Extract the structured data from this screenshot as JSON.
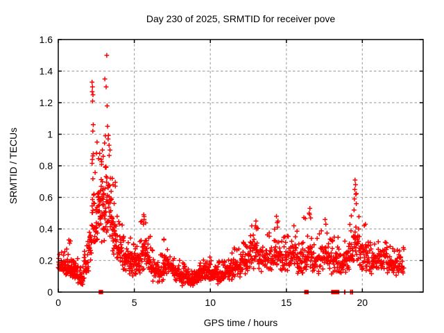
{
  "page": {
    "background_color": "#ffffff"
  },
  "chart_data": {
    "type": "scatter",
    "title": "Day 230 of 2025, SRMTID for receiver pove",
    "xlabel": "GPS time / hours",
    "ylabel": "SRMTID / TECUs",
    "xlim": [
      0,
      24
    ],
    "ylim": [
      0,
      1.6
    ],
    "xticks": [
      0,
      5,
      10,
      15,
      20
    ],
    "xtick_labels": [
      "0",
      "5",
      "10",
      "15",
      "20"
    ],
    "yticks": [
      0,
      0.2,
      0.4,
      0.6,
      0.8,
      1,
      1.2,
      1.4,
      1.6
    ],
    "ytick_labels": [
      "0",
      "0.2",
      "0.4",
      "0.6",
      "0.8",
      "1",
      "1.2",
      "1.4",
      "1.6"
    ],
    "grid": true,
    "grid_style": "dashed",
    "legend": "none",
    "marker": "plus",
    "marker_color": "#ff0000",
    "grid_color": "#a8a8a8",
    "axis_color": "#000000",
    "x_data_range": [
      0,
      22.75
    ],
    "notable_features": [
      "dense baseline cloud between 0.05 and 0.25 TECUs across the whole day",
      "major activity spike 2.2-3.5 h peaking at 1.50 TECUs near 3.2 h",
      "secondary peaks near 5.6 h (0.49), 13.0 h (0.45), 14.4 h (0.48), 16.5 h (0.53), 17.6 h (0.46), 19.5 h (0.71)",
      "zero-value flagged markers on the x-axis near 2.8, 16.3, 18.1, 18.3, 18.8, 19.2, 19.3 h"
    ],
    "series": [
      {
        "name": "SRMTID",
        "render": "density-bands",
        "bands_format": [
          "x_start_hours",
          "x_end_hours",
          "point_count",
          "y_bulk_min",
          "y_bulk_max",
          "y_tail_max"
        ],
        "bands": [
          [
            0.0,
            0.5,
            40,
            0.12,
            0.21,
            0.26
          ],
          [
            0.5,
            1.0,
            45,
            0.08,
            0.22,
            0.35
          ],
          [
            1.0,
            1.3,
            30,
            0.06,
            0.18,
            0.22
          ],
          [
            1.3,
            1.7,
            30,
            0.04,
            0.13,
            0.18
          ],
          [
            1.7,
            2.0,
            25,
            0.08,
            0.25,
            0.33
          ],
          [
            2.0,
            2.2,
            18,
            0.18,
            0.42,
            0.55
          ],
          [
            2.2,
            2.35,
            16,
            0.3,
            0.75,
            0.95
          ],
          [
            2.35,
            2.6,
            22,
            0.25,
            0.6,
            0.78
          ],
          [
            2.6,
            3.0,
            48,
            0.3,
            0.8,
            0.93
          ],
          [
            3.0,
            3.5,
            52,
            0.28,
            0.85,
            1.0
          ],
          [
            3.5,
            3.8,
            30,
            0.2,
            0.55,
            0.7
          ],
          [
            3.8,
            4.2,
            30,
            0.15,
            0.4,
            0.48
          ],
          [
            4.2,
            4.6,
            30,
            0.12,
            0.3,
            0.36
          ],
          [
            4.6,
            5.0,
            32,
            0.1,
            0.3,
            0.35
          ],
          [
            5.0,
            5.4,
            30,
            0.1,
            0.28,
            0.34
          ],
          [
            5.4,
            5.8,
            32,
            0.12,
            0.38,
            0.48
          ],
          [
            5.8,
            6.2,
            30,
            0.1,
            0.3,
            0.36
          ],
          [
            6.2,
            6.6,
            28,
            0.06,
            0.2,
            0.26
          ],
          [
            6.6,
            6.9,
            22,
            0.05,
            0.18,
            0.24
          ],
          [
            6.9,
            7.2,
            24,
            0.1,
            0.28,
            0.34
          ],
          [
            7.2,
            7.6,
            28,
            0.08,
            0.24,
            0.28
          ],
          [
            7.6,
            8.0,
            30,
            0.05,
            0.18,
            0.22
          ],
          [
            8.0,
            8.5,
            40,
            0.04,
            0.15,
            0.19
          ],
          [
            8.5,
            9.0,
            42,
            0.03,
            0.13,
            0.17
          ],
          [
            9.0,
            9.5,
            42,
            0.05,
            0.15,
            0.19
          ],
          [
            9.5,
            10.0,
            40,
            0.07,
            0.19,
            0.23
          ],
          [
            10.0,
            10.5,
            38,
            0.06,
            0.17,
            0.22
          ],
          [
            10.5,
            11.0,
            38,
            0.05,
            0.15,
            0.2
          ],
          [
            11.0,
            11.5,
            38,
            0.07,
            0.19,
            0.25
          ],
          [
            11.5,
            12.0,
            36,
            0.09,
            0.23,
            0.29
          ],
          [
            12.0,
            12.5,
            36,
            0.1,
            0.26,
            0.32
          ],
          [
            12.5,
            13.2,
            42,
            0.14,
            0.36,
            0.44
          ],
          [
            13.2,
            14.2,
            55,
            0.12,
            0.3,
            0.38
          ],
          [
            14.2,
            14.6,
            28,
            0.14,
            0.36,
            0.46
          ],
          [
            14.6,
            15.2,
            36,
            0.12,
            0.3,
            0.37
          ],
          [
            15.2,
            15.7,
            30,
            0.14,
            0.34,
            0.42
          ],
          [
            15.7,
            16.1,
            28,
            0.1,
            0.28,
            0.34
          ],
          [
            16.1,
            16.7,
            36,
            0.12,
            0.34,
            0.5
          ],
          [
            16.7,
            17.2,
            32,
            0.1,
            0.3,
            0.4
          ],
          [
            17.2,
            17.8,
            36,
            0.12,
            0.32,
            0.45
          ],
          [
            17.8,
            18.5,
            42,
            0.1,
            0.3,
            0.36
          ],
          [
            18.5,
            19.0,
            32,
            0.1,
            0.27,
            0.33
          ],
          [
            19.0,
            19.4,
            26,
            0.12,
            0.35,
            0.5
          ],
          [
            19.4,
            19.8,
            30,
            0.15,
            0.45,
            0.66
          ],
          [
            19.8,
            20.3,
            32,
            0.12,
            0.35,
            0.43
          ],
          [
            20.3,
            21.0,
            40,
            0.1,
            0.28,
            0.33
          ],
          [
            21.0,
            21.6,
            36,
            0.12,
            0.29,
            0.34
          ],
          [
            21.6,
            22.2,
            36,
            0.1,
            0.27,
            0.31
          ],
          [
            22.2,
            22.75,
            30,
            0.08,
            0.25,
            0.29
          ]
        ],
        "outlier_points": [
          [
            2.22,
            1.33
          ],
          [
            2.25,
            1.3
          ],
          [
            2.23,
            1.27
          ],
          [
            2.28,
            1.25
          ],
          [
            2.26,
            1.21
          ],
          [
            2.3,
            1.06
          ],
          [
            2.27,
            1.02
          ],
          [
            2.24,
            0.84
          ],
          [
            3.19,
            1.5
          ],
          [
            3.06,
            1.35
          ],
          [
            3.15,
            1.3
          ],
          [
            3.21,
            1.18
          ],
          [
            3.24,
            1.05
          ],
          [
            3.1,
            0.99
          ],
          [
            3.28,
            0.97
          ],
          [
            3.34,
            0.93
          ],
          [
            3.4,
            0.9
          ],
          [
            2.55,
            0.95
          ],
          [
            2.52,
            0.88
          ],
          [
            2.9,
            0.9
          ],
          [
            2.95,
            0.86
          ],
          [
            3.55,
            0.72
          ],
          [
            3.6,
            0.68
          ],
          [
            5.62,
            0.49
          ],
          [
            5.65,
            0.46
          ],
          [
            5.6,
            0.43
          ],
          [
            6.95,
            0.33
          ],
          [
            13.0,
            0.45
          ],
          [
            12.97,
            0.42
          ],
          [
            13.03,
            0.4
          ],
          [
            14.35,
            0.48
          ],
          [
            14.4,
            0.44
          ],
          [
            15.5,
            0.42
          ],
          [
            16.55,
            0.53
          ],
          [
            16.5,
            0.5
          ],
          [
            16.6,
            0.47
          ],
          [
            17.55,
            0.46
          ],
          [
            17.6,
            0.43
          ],
          [
            19.52,
            0.71
          ],
          [
            19.55,
            0.68
          ],
          [
            19.5,
            0.65
          ],
          [
            19.57,
            0.62
          ],
          [
            19.48,
            0.59
          ],
          [
            19.6,
            0.56
          ],
          [
            19.45,
            0.52
          ],
          [
            20.2,
            0.43
          ],
          [
            0.7,
            0.33
          ],
          [
            0.75,
            0.31
          ],
          [
            11.6,
            0.27
          ],
          [
            12.3,
            0.3
          ]
        ]
      },
      {
        "name": "flagged-zero-values",
        "y": 0,
        "points": [
          {
            "x": 2.8,
            "shape": "square"
          },
          {
            "x": 16.32,
            "shape": "square"
          },
          {
            "x": 18.09,
            "shape": "square"
          },
          {
            "x": 18.34,
            "shape": "square"
          },
          {
            "x": 18.84,
            "shape": "bar"
          },
          {
            "x": 19.23,
            "shape": "bar"
          },
          {
            "x": 19.34,
            "shape": "bar"
          }
        ]
      }
    ]
  }
}
